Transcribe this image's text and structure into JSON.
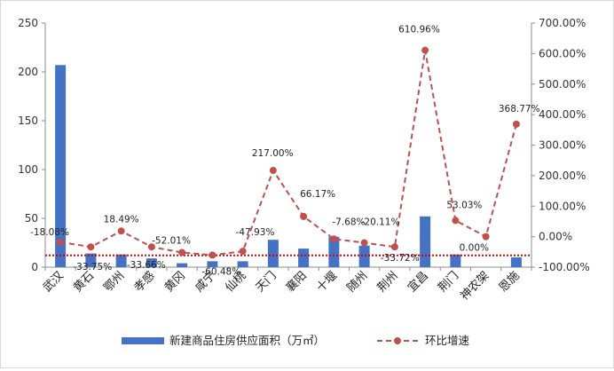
{
  "chart_data": {
    "type": "bar+line",
    "categories": [
      "武汉",
      "黄石",
      "鄂州",
      "孝感",
      "黄冈",
      "咸宁",
      "仙桃",
      "天门",
      "襄阳",
      "十堰",
      "随州",
      "荆州",
      "宜昌",
      "荆门",
      "神农架",
      "恩施"
    ],
    "series": [
      {
        "name": "新建商品住房供应面积（万㎡）",
        "type": "bar",
        "axis": "left",
        "color": "#4472C4",
        "values": [
          207,
          14,
          13,
          9,
          4,
          6,
          6,
          28,
          19,
          31,
          22,
          0,
          52,
          13,
          0,
          10
        ]
      },
      {
        "name": "环比增速",
        "type": "line",
        "axis": "right",
        "color": "#C0504D",
        "values": [
          -18.08,
          -33.75,
          18.49,
          -33.66,
          -52.01,
          -60.48,
          -47.93,
          217.0,
          66.17,
          -7.68,
          -20.11,
          -33.72,
          610.96,
          53.03,
          0.0,
          368.77
        ],
        "labels": [
          "-18.08%",
          "-33.75%",
          "18.49%",
          "-33.66%",
          "-52.01%",
          "-60.48%",
          "-47.93%",
          "217.00%",
          "66.17%",
          "-7.68%",
          "-20.11%",
          "-33.72%",
          "610.96%",
          "53.03%",
          "0.00%",
          "368.77%"
        ]
      }
    ],
    "y_left": {
      "min": 0,
      "max": 250,
      "step": 50,
      "ticks": [
        "0",
        "50",
        "100",
        "150",
        "200",
        "250"
      ]
    },
    "y_right": {
      "min": -100,
      "max": 700,
      "step": 100,
      "ticks": [
        "-100.00%",
        "0.00%",
        "100.00%",
        "200.00%",
        "300.00%",
        "400.00%",
        "500.00%",
        "600.00%",
        "700.00%"
      ]
    },
    "reference_line": {
      "axis": "left",
      "value": 12,
      "color": "#E00000",
      "style": "dotted"
    },
    "grid": false,
    "legend_position": "bottom",
    "title": "",
    "xlabel": "",
    "ylabel": ""
  }
}
